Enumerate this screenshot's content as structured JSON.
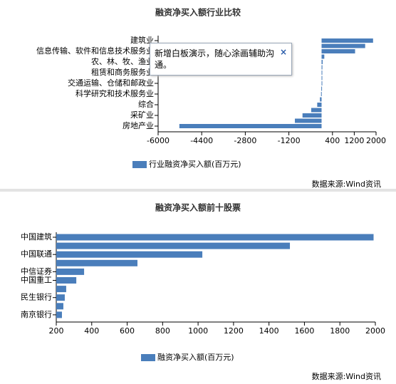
{
  "chart_data": [
    {
      "type": "hbar",
      "title": "融资净买入额行业比较",
      "categories": [
        "建筑业",
        null,
        "信息传输、软件和信息技术服务业",
        null,
        "农、林、牧、渔业",
        null,
        "租赁和商务服务业",
        null,
        "交通运输、仓储和邮政业",
        null,
        "科学研究和技术服务业",
        null,
        "综合",
        null,
        "采矿业",
        null,
        "房地产业"
      ],
      "series": [
        {
          "name": "行业融资净买入额(百万元)",
          "color": "#4a7ebb",
          "values": [
            1890,
            1600,
            1230,
            100,
            40,
            30,
            20,
            10,
            5,
            -10,
            -20,
            -60,
            -160,
            -380,
            -700,
            -980,
            -5220
          ]
        }
      ],
      "xlim": [
        -6000,
        2000
      ],
      "xticks": [
        -6000,
        -4400,
        -2800,
        -1200,
        400,
        1200,
        2000
      ],
      "annotation": "新增白板演示，随心涂画辅助沟通。",
      "annotation_close": "×",
      "source": "数据来源:Wind资讯"
    },
    {
      "type": "hbar",
      "title": "融资净买入额前十股票",
      "categories": [
        "中国建筑",
        null,
        "中国联通",
        null,
        "中信证券",
        "中国重工",
        null,
        "民生银行",
        null,
        "南京银行"
      ],
      "series": [
        {
          "name": "融资净买入额(百万元)",
          "color": "#4a7ebb",
          "values": [
            1990,
            1518,
            1024,
            658,
            357,
            313,
            256,
            248,
            240,
            232
          ]
        }
      ],
      "xlim": [
        200,
        2000
      ],
      "xticks": [
        200,
        400,
        600,
        800,
        1000,
        1200,
        1400,
        1600,
        1800,
        2000
      ],
      "source": "数据来源:Wind资讯"
    }
  ]
}
